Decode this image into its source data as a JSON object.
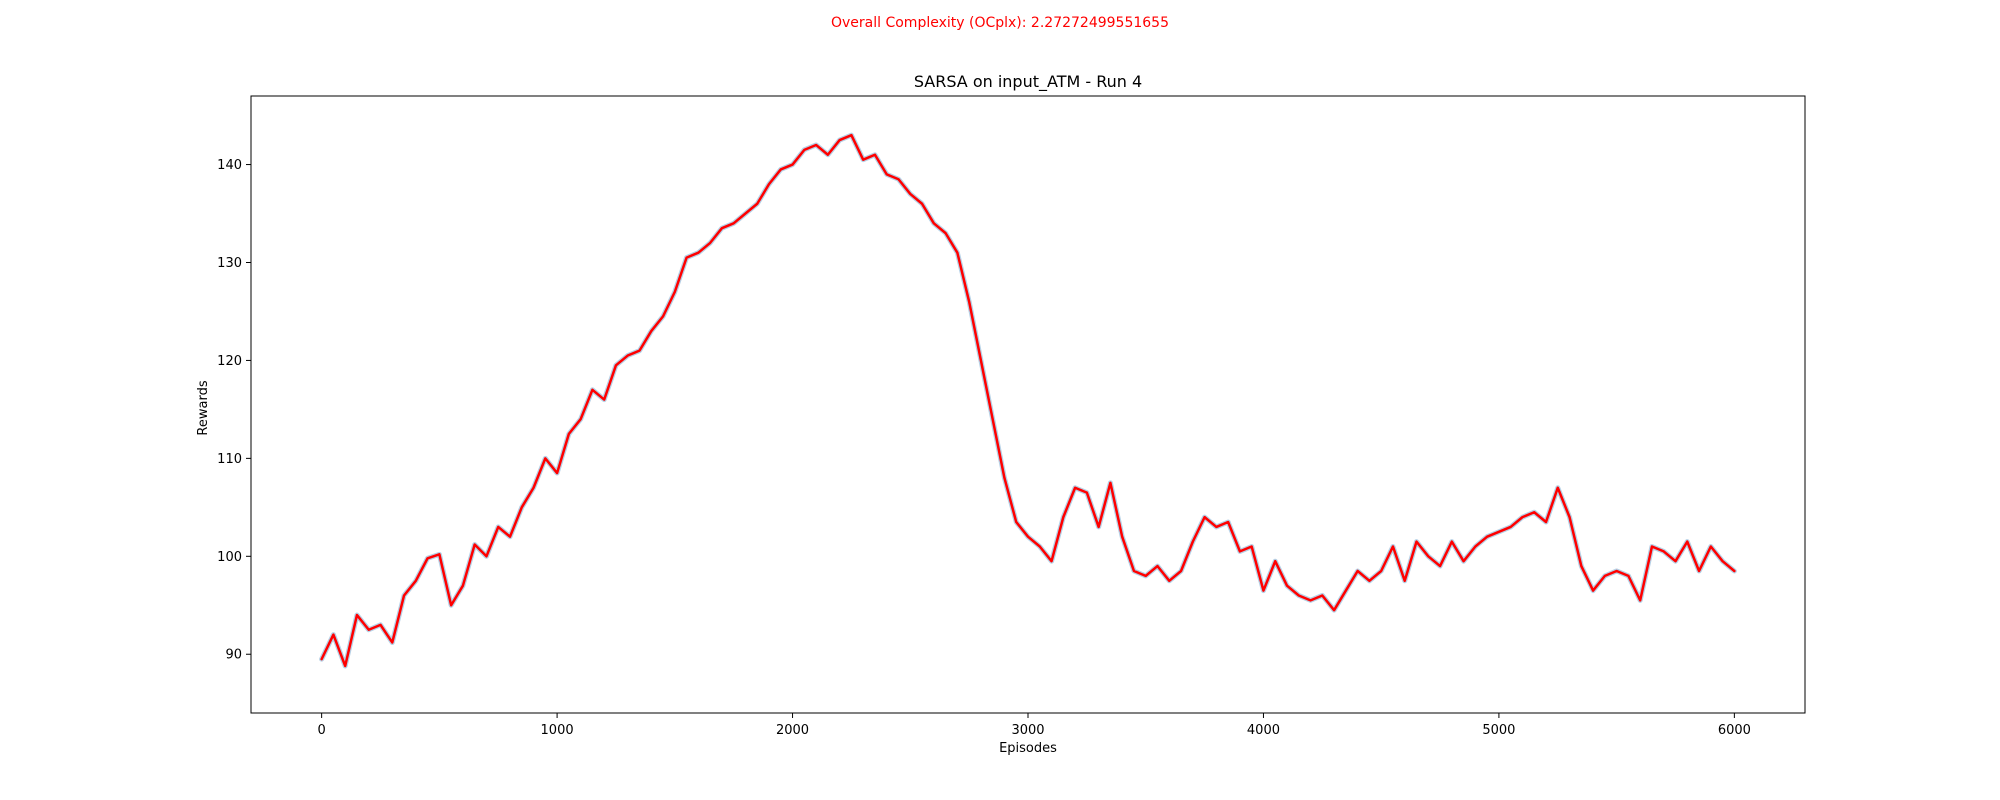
{
  "figure": {
    "suptitle": "Overall Complexity (OCplx): 2.27272499551655"
  },
  "chart_data": {
    "type": "line",
    "title": "SARSA on input_ATM - Run 4",
    "xlabel": "Episodes",
    "ylabel": "Rewards",
    "xlim": [
      -300,
      6300
    ],
    "ylim": [
      84,
      147
    ],
    "xticks": [
      0,
      1000,
      2000,
      3000,
      4000,
      5000,
      6000
    ],
    "yticks": [
      90,
      100,
      110,
      120,
      130,
      140
    ],
    "legend": "none",
    "grid": false,
    "colors": {
      "raw": "#a9c9e2",
      "smoothed": "#ff0000",
      "suptitle": "#ff0000"
    },
    "series": [
      {
        "style": "raw",
        "x": [
          0,
          50,
          100,
          150,
          200,
          250,
          300,
          350,
          400,
          450,
          500,
          550,
          600,
          650,
          700,
          750,
          800,
          850,
          900,
          950,
          1000,
          1050,
          1100,
          1150,
          1200,
          1250,
          1300,
          1350,
          1400,
          1450,
          1500,
          1550,
          1600,
          1650,
          1700,
          1750,
          1800,
          1850,
          1900,
          1950,
          2000,
          2050,
          2100,
          2150,
          2200,
          2250,
          2300,
          2350,
          2400,
          2450,
          2500,
          2550,
          2600,
          2650,
          2700,
          2750,
          2800,
          2850,
          2900,
          2950,
          3000,
          3050,
          3100,
          3150,
          3200,
          3250,
          3300,
          3350,
          3400,
          3450,
          3500,
          3550,
          3600,
          3650,
          3700,
          3750,
          3800,
          3850,
          3900,
          3950,
          4000,
          4050,
          4100,
          4150,
          4200,
          4250,
          4300,
          4350,
          4400,
          4450,
          4500,
          4550,
          4600,
          4650,
          4700,
          4750,
          4800,
          4850,
          4900,
          4950,
          5000,
          5050,
          5100,
          5150,
          5200,
          5250,
          5300,
          5350,
          5400,
          5450,
          5500,
          5550,
          5600,
          5650,
          5700,
          5750,
          5800,
          5850,
          5900,
          5950,
          6000
        ],
        "y": [
          89.5,
          92.0,
          88.8,
          94.0,
          92.5,
          93.0,
          91.2,
          96.0,
          97.5,
          99.8,
          100.2,
          95.0,
          97.0,
          101.2,
          100.0,
          103.0,
          102.0,
          105.0,
          107.0,
          110.0,
          108.5,
          112.5,
          114.0,
          117.0,
          116.0,
          119.5,
          120.5,
          121.0,
          123.0,
          124.5,
          127.0,
          130.5,
          131.0,
          132.0,
          133.5,
          134.0,
          135.0,
          136.0,
          138.0,
          139.5,
          140.0,
          141.5,
          142.0,
          141.0,
          142.5,
          143.0,
          140.5,
          141.0,
          139.0,
          138.5,
          137.0,
          136.0,
          134.0,
          133.0,
          131.0,
          126.0,
          120.0,
          114.0,
          108.0,
          103.5,
          102.0,
          101.0,
          99.5,
          104.0,
          107.0,
          106.5,
          103.0,
          107.5,
          102.0,
          98.5,
          98.0,
          99.0,
          97.5,
          98.5,
          101.5,
          104.0,
          103.0,
          103.5,
          100.5,
          101.0,
          96.5,
          99.5,
          97.0,
          96.0,
          95.5,
          96.0,
          94.5,
          96.5,
          98.5,
          97.5,
          98.5,
          101.0,
          97.5,
          101.5,
          100.0,
          99.0,
          101.5,
          99.5,
          101.0,
          102.0,
          102.5,
          103.0,
          104.0,
          104.5,
          103.5,
          107.0,
          104.0,
          99.0,
          96.5,
          98.0,
          98.5,
          98.0,
          95.5,
          101.0,
          100.5,
          99.5,
          101.5,
          98.5,
          101.0,
          99.5,
          98.5
        ]
      },
      {
        "style": "smoothed",
        "x": [
          0,
          50,
          100,
          150,
          200,
          250,
          300,
          350,
          400,
          450,
          500,
          550,
          600,
          650,
          700,
          750,
          800,
          850,
          900,
          950,
          1000,
          1050,
          1100,
          1150,
          1200,
          1250,
          1300,
          1350,
          1400,
          1450,
          1500,
          1550,
          1600,
          1650,
          1700,
          1750,
          1800,
          1850,
          1900,
          1950,
          2000,
          2050,
          2100,
          2150,
          2200,
          2250,
          2300,
          2350,
          2400,
          2450,
          2500,
          2550,
          2600,
          2650,
          2700,
          2750,
          2800,
          2850,
          2900,
          2950,
          3000,
          3050,
          3100,
          3150,
          3200,
          3250,
          3300,
          3350,
          3400,
          3450,
          3500,
          3550,
          3600,
          3650,
          3700,
          3750,
          3800,
          3850,
          3900,
          3950,
          4000,
          4050,
          4100,
          4150,
          4200,
          4250,
          4300,
          4350,
          4400,
          4450,
          4500,
          4550,
          4600,
          4650,
          4700,
          4750,
          4800,
          4850,
          4900,
          4950,
          5000,
          5050,
          5100,
          5150,
          5200,
          5250,
          5300,
          5350,
          5400,
          5450,
          5500,
          5550,
          5600,
          5650,
          5700,
          5750,
          5800,
          5850,
          5900,
          5950,
          6000
        ],
        "y": [
          89.5,
          92.0,
          88.8,
          94.0,
          92.5,
          93.0,
          91.2,
          96.0,
          97.5,
          99.8,
          100.2,
          95.0,
          97.0,
          101.2,
          100.0,
          103.0,
          102.0,
          105.0,
          107.0,
          110.0,
          108.5,
          112.5,
          114.0,
          117.0,
          116.0,
          119.5,
          120.5,
          121.0,
          123.0,
          124.5,
          127.0,
          130.5,
          131.0,
          132.0,
          133.5,
          134.0,
          135.0,
          136.0,
          138.0,
          139.5,
          140.0,
          141.5,
          142.0,
          141.0,
          142.5,
          143.0,
          140.5,
          141.0,
          139.0,
          138.5,
          137.0,
          136.0,
          134.0,
          133.0,
          131.0,
          126.0,
          120.0,
          114.0,
          108.0,
          103.5,
          102.0,
          101.0,
          99.5,
          104.0,
          107.0,
          106.5,
          103.0,
          107.5,
          102.0,
          98.5,
          98.0,
          99.0,
          97.5,
          98.5,
          101.5,
          104.0,
          103.0,
          103.5,
          100.5,
          101.0,
          96.5,
          99.5,
          97.0,
          96.0,
          95.5,
          96.0,
          94.5,
          96.5,
          98.5,
          97.5,
          98.5,
          101.0,
          97.5,
          101.5,
          100.0,
          99.0,
          101.5,
          99.5,
          101.0,
          102.0,
          102.5,
          103.0,
          104.0,
          104.5,
          103.5,
          107.0,
          104.0,
          99.0,
          96.5,
          98.0,
          98.5,
          98.0,
          95.5,
          101.0,
          100.5,
          99.5,
          101.5,
          98.5,
          101.0,
          99.5,
          98.5
        ]
      }
    ]
  }
}
